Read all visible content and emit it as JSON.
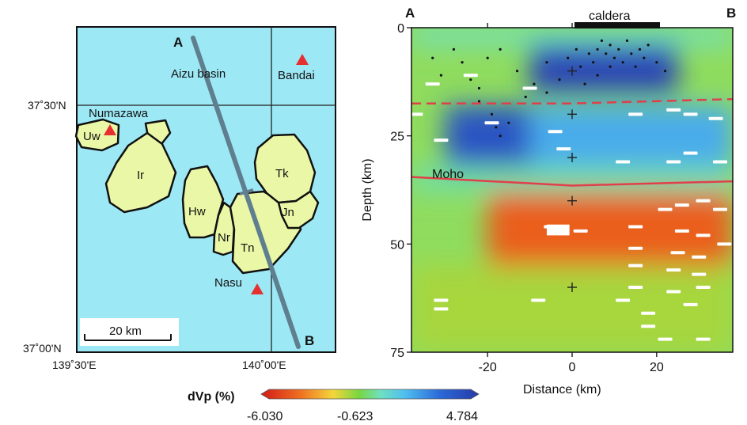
{
  "map": {
    "lat_labels": [
      "37˚30'N",
      "37˚00'N"
    ],
    "lon_labels": [
      "139˚30'E",
      "140˚00'E"
    ],
    "profile_start": "A",
    "profile_end": "B",
    "place_labels": {
      "aizu": "Aizu basin",
      "bandai": "Bandai",
      "numazawa": "Numazawa",
      "nasu": "Nasu"
    },
    "caldera_labels": [
      "Uw",
      "Ir",
      "Hw",
      "Nr",
      "Tn",
      "Tk",
      "Jn"
    ],
    "scale_label": "20 km",
    "colors": {
      "sea": "#9de8f5",
      "caldera_fill": "#eaf7a6",
      "volcano": "#e53030",
      "profile_line": "#5f7f8f"
    }
  },
  "section": {
    "left_label": "A",
    "right_label": "B",
    "caldera_label": "caldera",
    "moho_label": "Moho",
    "colors": {
      "moho_line": "#e0404a",
      "conrad_line": "#e0404a"
    }
  },
  "colorbar": {
    "label": "dVp (%)",
    "min_label": "-6.030",
    "mid_label": "-0.623",
    "max_label": "4.784"
  },
  "chart_data": {
    "type": "heatmap",
    "title": "",
    "xlabel": "Distance (km)",
    "ylabel": "Depth (km)",
    "xlim": [
      -38,
      38
    ],
    "ylim": [
      0,
      75
    ],
    "y_inverted": true,
    "x_ticks": [
      "-20",
      "0",
      "20"
    ],
    "y_ticks": [
      "0",
      "25",
      "50",
      "75"
    ],
    "caldera_extent_km": [
      0,
      20
    ],
    "moho_depth_km": [
      [
        -38,
        34.5
      ],
      [
        0,
        36.5
      ],
      [
        38,
        35.5
      ]
    ],
    "dashed_interface_km": [
      [
        -38,
        17.5
      ],
      [
        0,
        17.5
      ],
      [
        38,
        16.5
      ]
    ],
    "cross_markers": [
      [
        0,
        10
      ],
      [
        0,
        20
      ],
      [
        0,
        30
      ],
      [
        0,
        40
      ],
      [
        0,
        60
      ]
    ],
    "dvp_range": [
      -6.03,
      4.784
    ],
    "anomalies": [
      {
        "x_range": [
          -38,
          38
        ],
        "depth_range": [
          0,
          4
        ],
        "dvp": 0.0
      },
      {
        "x_range": [
          -10,
          25
        ],
        "depth_range": [
          4,
          15
        ],
        "dvp": 4.3
      },
      {
        "x_range": [
          -30,
          -10
        ],
        "depth_range": [
          18,
          32
        ],
        "dvp": 3.8
      },
      {
        "x_range": [
          -10,
          38
        ],
        "depth_range": [
          18,
          32
        ],
        "dvp": 1.6
      },
      {
        "x_range": [
          -38,
          38
        ],
        "depth_range": [
          32,
          38
        ],
        "dvp": -0.2
      },
      {
        "x_range": [
          -20,
          38
        ],
        "depth_range": [
          38,
          55
        ],
        "dvp": -4.8
      },
      {
        "x_range": [
          -38,
          38
        ],
        "depth_range": [
          55,
          75
        ],
        "dvp": -1.5
      }
    ]
  }
}
